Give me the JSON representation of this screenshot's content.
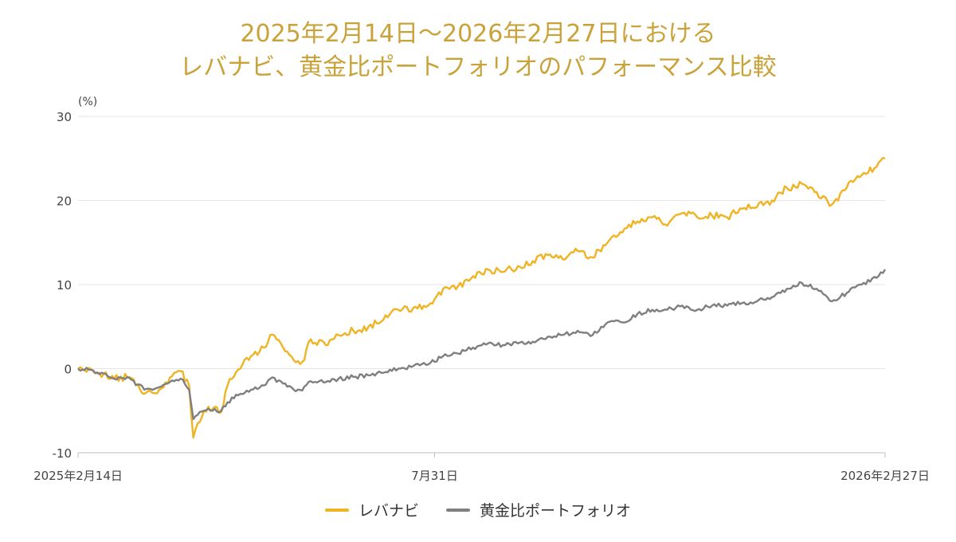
{
  "chart_data": {
    "type": "line",
    "title_line1": "2025年2月14日～2026年2月27日における",
    "title_line2": "レバナビ、黄金比ポートフォリオのパフォーマンス比較",
    "y_unit": "(%)",
    "ylim": [
      -10,
      30
    ],
    "yticks": [
      "30",
      "20",
      "10",
      "0",
      "-10"
    ],
    "xtick_labels": [
      "2025年2月14日",
      "7月31日",
      "2026年2月27日"
    ],
    "x_range": [
      "2025-02-14",
      "2026-02-27"
    ],
    "xtick_dates": [
      "2025-02-14",
      "2025-07-31",
      "2026-02-27"
    ],
    "grid": true,
    "legend_position": "bottom",
    "series": [
      {
        "name": "レバナビ",
        "color": "#f0b323",
        "points": [
          [
            "2025-02-14",
            0
          ],
          [
            "2025-02-21",
            -0.3
          ],
          [
            "2025-03-03",
            -1.2
          ],
          [
            "2025-03-10",
            -1.0
          ],
          [
            "2025-03-17",
            -3.0
          ],
          [
            "2025-03-24",
            -2.5
          ],
          [
            "2025-03-31",
            -0.5
          ],
          [
            "2025-04-03",
            -0.3
          ],
          [
            "2025-04-07",
            -2.0
          ],
          [
            "2025-04-09",
            -8.2
          ],
          [
            "2025-04-11",
            -6.5
          ],
          [
            "2025-04-14",
            -5.0
          ],
          [
            "2025-04-18",
            -4.8
          ],
          [
            "2025-04-22",
            -5.2
          ],
          [
            "2025-04-25",
            -2.0
          ],
          [
            "2025-05-01",
            0
          ],
          [
            "2025-05-06",
            1.5
          ],
          [
            "2025-05-12",
            2.5
          ],
          [
            "2025-05-15",
            4.0
          ],
          [
            "2025-05-20",
            3.0
          ],
          [
            "2025-05-26",
            1.0
          ],
          [
            "2025-05-30",
            0.8
          ],
          [
            "2025-06-03",
            3.5
          ],
          [
            "2025-06-10",
            2.8
          ],
          [
            "2025-06-16",
            4.0
          ],
          [
            "2025-06-23",
            4.5
          ],
          [
            "2025-06-30",
            5.0
          ],
          [
            "2025-07-07",
            5.8
          ],
          [
            "2025-07-14",
            7.0
          ],
          [
            "2025-07-21",
            7.2
          ],
          [
            "2025-07-28",
            7.5
          ],
          [
            "2025-08-04",
            9.5
          ],
          [
            "2025-08-11",
            9.8
          ],
          [
            "2025-08-18",
            11.0
          ],
          [
            "2025-08-25",
            11.8
          ],
          [
            "2025-09-01",
            11.5
          ],
          [
            "2025-09-08",
            12.2
          ],
          [
            "2025-09-15",
            12.8
          ],
          [
            "2025-09-22",
            13.5
          ],
          [
            "2025-09-29",
            13.0
          ],
          [
            "2025-10-06",
            14.0
          ],
          [
            "2025-10-13",
            13.2
          ],
          [
            "2025-10-20",
            15.0
          ],
          [
            "2025-10-27",
            16.2
          ],
          [
            "2025-11-03",
            17.5
          ],
          [
            "2025-11-10",
            18.0
          ],
          [
            "2025-11-17",
            17.0
          ],
          [
            "2025-11-24",
            18.5
          ],
          [
            "2025-12-01",
            18.0
          ],
          [
            "2025-12-08",
            18.2
          ],
          [
            "2025-12-15",
            18.0
          ],
          [
            "2025-12-22",
            19.0
          ],
          [
            "2025-12-29",
            19.2
          ],
          [
            "2026-01-05",
            20.0
          ],
          [
            "2026-01-12",
            21.5
          ],
          [
            "2026-01-19",
            22.0
          ],
          [
            "2026-01-26",
            21.0
          ],
          [
            "2026-02-02",
            19.5
          ],
          [
            "2026-02-09",
            21.5
          ],
          [
            "2026-02-16",
            23.0
          ],
          [
            "2026-02-23",
            24.0
          ],
          [
            "2026-02-27",
            25.0
          ]
        ]
      },
      {
        "name": "黄金比ポートフォリオ",
        "color": "#7f7f7f",
        "points": [
          [
            "2025-02-14",
            0
          ],
          [
            "2025-02-21",
            -0.2
          ],
          [
            "2025-03-03",
            -1.2
          ],
          [
            "2025-03-10",
            -1.1
          ],
          [
            "2025-03-17",
            -2.5
          ],
          [
            "2025-03-24",
            -2.2
          ],
          [
            "2025-03-31",
            -1.5
          ],
          [
            "2025-04-03",
            -1.2
          ],
          [
            "2025-04-07",
            -2.5
          ],
          [
            "2025-04-09",
            -6.0
          ],
          [
            "2025-04-11",
            -5.5
          ],
          [
            "2025-04-14",
            -5.0
          ],
          [
            "2025-04-18",
            -5.0
          ],
          [
            "2025-04-22",
            -5.0
          ],
          [
            "2025-04-25",
            -4.0
          ],
          [
            "2025-05-01",
            -3.0
          ],
          [
            "2025-05-06",
            -2.5
          ],
          [
            "2025-05-12",
            -2.0
          ],
          [
            "2025-05-15",
            -1.2
          ],
          [
            "2025-05-20",
            -1.5
          ],
          [
            "2025-05-26",
            -2.5
          ],
          [
            "2025-05-30",
            -2.6
          ],
          [
            "2025-06-03",
            -1.5
          ],
          [
            "2025-06-10",
            -1.6
          ],
          [
            "2025-06-16",
            -1.2
          ],
          [
            "2025-06-23",
            -1.0
          ],
          [
            "2025-06-30",
            -0.8
          ],
          [
            "2025-07-07",
            -0.5
          ],
          [
            "2025-07-14",
            0
          ],
          [
            "2025-07-21",
            0.3
          ],
          [
            "2025-07-28",
            0.5
          ],
          [
            "2025-08-04",
            1.5
          ],
          [
            "2025-08-11",
            1.8
          ],
          [
            "2025-08-18",
            2.5
          ],
          [
            "2025-08-25",
            3.0
          ],
          [
            "2025-09-01",
            2.8
          ],
          [
            "2025-09-08",
            3.0
          ],
          [
            "2025-09-15",
            3.2
          ],
          [
            "2025-09-22",
            3.8
          ],
          [
            "2025-09-29",
            4.0
          ],
          [
            "2025-10-06",
            4.5
          ],
          [
            "2025-10-13",
            4.0
          ],
          [
            "2025-10-20",
            5.5
          ],
          [
            "2025-10-27",
            5.5
          ],
          [
            "2025-11-03",
            6.5
          ],
          [
            "2025-11-10",
            7.0
          ],
          [
            "2025-11-17",
            7.0
          ],
          [
            "2025-11-24",
            7.5
          ],
          [
            "2025-12-01",
            7.0
          ],
          [
            "2025-12-08",
            7.5
          ],
          [
            "2025-12-15",
            7.5
          ],
          [
            "2025-12-22",
            7.8
          ],
          [
            "2025-12-29",
            8.0
          ],
          [
            "2026-01-05",
            8.5
          ],
          [
            "2026-01-12",
            9.5
          ],
          [
            "2026-01-19",
            10.2
          ],
          [
            "2026-01-26",
            9.5
          ],
          [
            "2026-02-02",
            8.0
          ],
          [
            "2026-02-09",
            9.0
          ],
          [
            "2026-02-16",
            10.0
          ],
          [
            "2026-02-23",
            10.8
          ],
          [
            "2026-02-27",
            11.8
          ]
        ]
      }
    ]
  }
}
